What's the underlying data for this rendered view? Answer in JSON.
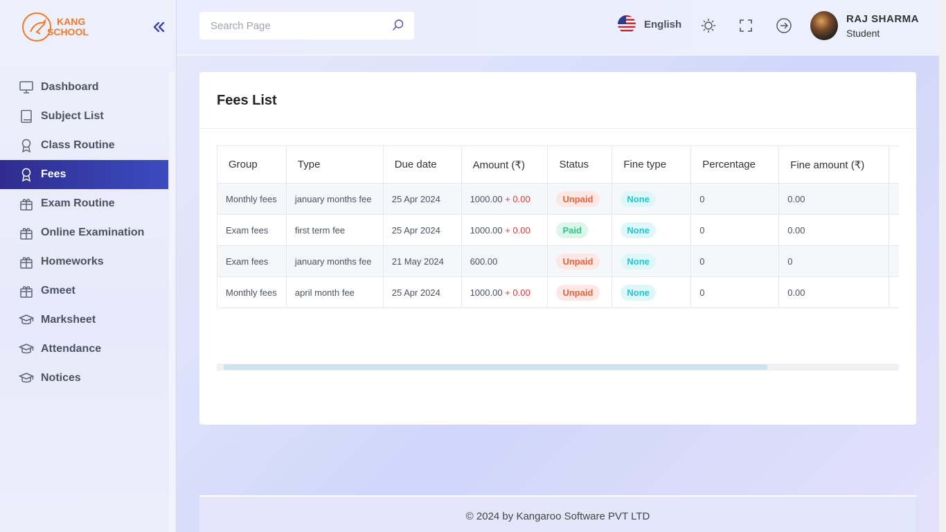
{
  "brand": {
    "line1": "KANG",
    "line2": "SCHOOL",
    "accent": "#f07a2a"
  },
  "sidebar": {
    "collapse_icon": "double-chevron-left-icon",
    "items": [
      {
        "label": "Dashboard",
        "icon": "monitor-icon",
        "active": false
      },
      {
        "label": "Subject List",
        "icon": "book-icon",
        "active": false
      },
      {
        "label": "Class Routine",
        "icon": "award-icon",
        "active": false
      },
      {
        "label": "Fees",
        "icon": "award-icon",
        "active": true
      },
      {
        "label": "Exam Routine",
        "icon": "gift-icon",
        "active": false
      },
      {
        "label": "Online Examination",
        "icon": "gift-icon",
        "active": false
      },
      {
        "label": "Homeworks",
        "icon": "gift-icon",
        "active": false
      },
      {
        "label": "Gmeet",
        "icon": "gift-icon",
        "active": false
      },
      {
        "label": "Marksheet",
        "icon": "graduation-cap-icon",
        "active": false
      },
      {
        "label": "Attendance",
        "icon": "graduation-cap-icon",
        "active": false
      },
      {
        "label": "Notices",
        "icon": "graduation-cap-icon",
        "active": false
      }
    ]
  },
  "header": {
    "search": {
      "placeholder": "Search Page",
      "value": ""
    },
    "language": "English",
    "user": {
      "name": "RAJ SHARMA",
      "role": "Student"
    }
  },
  "main": {
    "title": "Fees List",
    "columns": [
      "Group",
      "Type",
      "Due date",
      "Amount (₹)",
      "Status",
      "Fine type",
      "Percentage",
      "Fine amount (₹)"
    ],
    "rows": [
      {
        "group": "Monthly fees",
        "type": "january months fee",
        "due": "25 Apr 2024",
        "amount": "1000.00",
        "fine_add": "+ 0.00",
        "status": "Unpaid",
        "fine_type": "None",
        "percentage": "0",
        "fine_amount": "0.00"
      },
      {
        "group": "Exam fees",
        "type": "first term fee",
        "due": "25 Apr 2024",
        "amount": "1000.00",
        "fine_add": "+ 0.00",
        "status": "Paid",
        "fine_type": "None",
        "percentage": "0",
        "fine_amount": "0.00"
      },
      {
        "group": "Exam fees",
        "type": "january months fee",
        "due": "21 May 2024",
        "amount": "600.00",
        "fine_add": "",
        "status": "Unpaid",
        "fine_type": "None",
        "percentage": "0",
        "fine_amount": "0"
      },
      {
        "group": "Monthly fees",
        "type": "april month fee",
        "due": "25 Apr 2024",
        "amount": "1000.00",
        "fine_add": "+ 0.00",
        "status": "Unpaid",
        "fine_type": "None",
        "percentage": "0",
        "fine_amount": "0.00"
      }
    ]
  },
  "footer": {
    "text": "© 2024 by Kangaroo Software PVT LTD"
  },
  "colors": {
    "active_nav": "#3b4bc0",
    "unpaid": "#e8643c",
    "paid": "#2fc38d",
    "none": "#1ec6d6",
    "fine": "#e03a3a"
  }
}
